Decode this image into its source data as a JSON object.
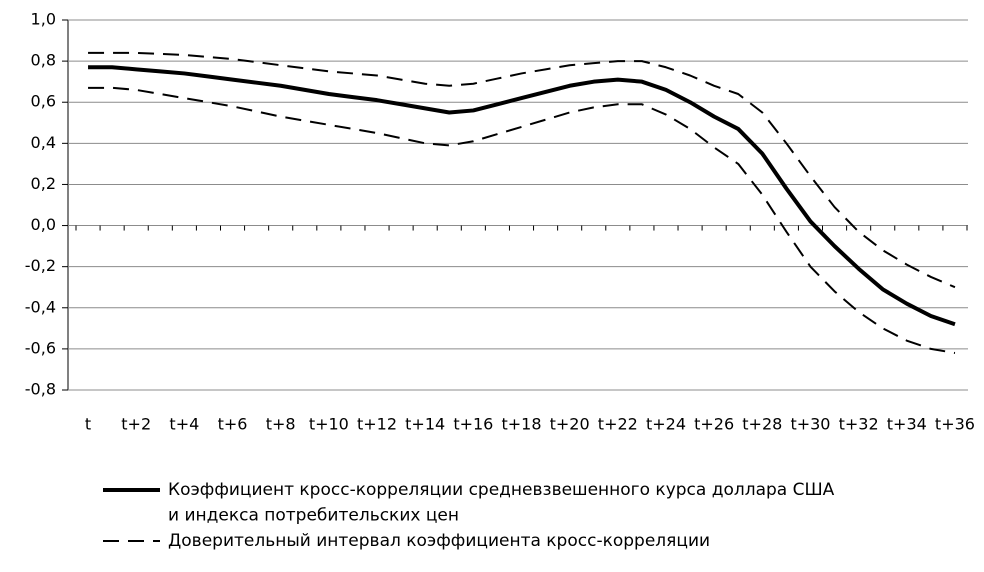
{
  "chart_data": {
    "type": "line",
    "categories": [
      "t",
      null,
      "t+2",
      null,
      "t+4",
      null,
      "t+6",
      null,
      "t+8",
      null,
      "t+10",
      null,
      "t+12",
      null,
      "t+14",
      null,
      "t+16",
      null,
      "t+18",
      null,
      "t+20",
      null,
      "t+22",
      null,
      "t+24",
      null,
      "t+26",
      null,
      "t+28",
      null,
      "t+30",
      null,
      "t+32",
      null,
      "t+34",
      null,
      "t+36"
    ],
    "series": [
      {
        "name": [
          "Коэффициент кросс-корреляции средневзвешенного курса доллара США",
          "и индекса потребительских цен"
        ],
        "color": "#000000",
        "style": "solid",
        "values": [
          0.77,
          0.77,
          0.76,
          0.75,
          0.74,
          0.725,
          0.71,
          0.695,
          0.68,
          0.66,
          0.64,
          0.625,
          0.61,
          0.59,
          0.57,
          0.55,
          0.56,
          0.59,
          0.62,
          0.65,
          0.68,
          0.7,
          0.71,
          0.7,
          0.66,
          0.6,
          0.53,
          0.47,
          0.35,
          0.18,
          0.02,
          -0.1,
          -0.21,
          -0.31,
          -0.38,
          -0.44,
          -0.48
        ]
      },
      {
        "name": "Доверительный интервал коэффициента кросс-корреляции",
        "color": "#000000",
        "style": "dashed",
        "upper": [
          0.84,
          0.84,
          0.84,
          0.835,
          0.83,
          0.82,
          0.81,
          0.795,
          0.78,
          0.765,
          0.75,
          0.74,
          0.73,
          0.71,
          0.69,
          0.68,
          0.69,
          0.715,
          0.74,
          0.76,
          0.78,
          0.79,
          0.8,
          0.8,
          0.77,
          0.73,
          0.68,
          0.64,
          0.55,
          0.4,
          0.24,
          0.09,
          -0.03,
          -0.12,
          -0.19,
          -0.25,
          -0.3
        ],
        "lower": [
          0.67,
          0.67,
          0.66,
          0.64,
          0.62,
          0.6,
          0.58,
          0.555,
          0.53,
          0.51,
          0.49,
          0.47,
          0.45,
          0.425,
          0.4,
          0.39,
          0.41,
          0.445,
          0.48,
          0.515,
          0.55,
          0.575,
          0.59,
          0.59,
          0.54,
          0.47,
          0.38,
          0.3,
          0.15,
          -0.03,
          -0.2,
          -0.32,
          -0.42,
          -0.5,
          -0.56,
          -0.6,
          -0.62
        ]
      }
    ],
    "ylim": [
      -0.8,
      1.0
    ],
    "yticks": [
      {
        "value": -0.8,
        "label": "-0,8"
      },
      {
        "value": -0.6,
        "label": "-0,6"
      },
      {
        "value": -0.4,
        "label": "-0,4"
      },
      {
        "value": -0.2,
        "label": "-0,2"
      },
      {
        "value": 0,
        "label": "0,0"
      },
      {
        "value": 0.2,
        "label": "0,2"
      },
      {
        "value": 0.4,
        "label": "0,4"
      },
      {
        "value": 0.6,
        "label": "0,6"
      },
      {
        "value": 0.8,
        "label": "0,8"
      },
      {
        "value": 1.0,
        "label": "1,0"
      }
    ],
    "grid": true
  }
}
